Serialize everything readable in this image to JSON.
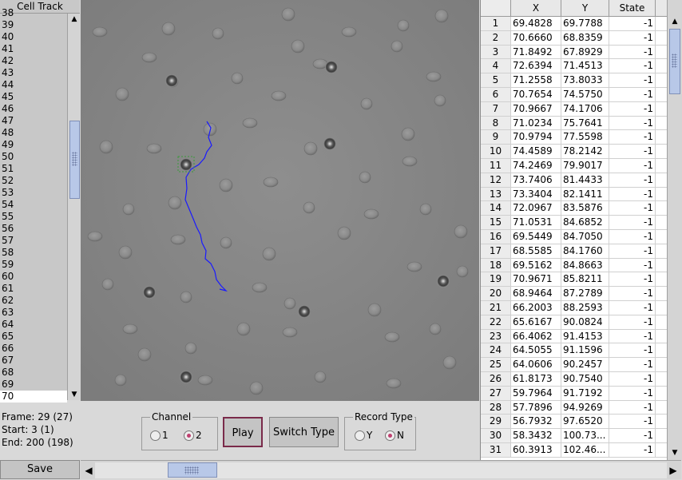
{
  "left_panel": {
    "title": "Cell Track",
    "rows": [
      "38",
      "39",
      "40",
      "41",
      "42",
      "43",
      "44",
      "45",
      "46",
      "47",
      "48",
      "49",
      "50",
      "51",
      "52",
      "53",
      "54",
      "55",
      "56",
      "57",
      "58",
      "59",
      "60",
      "61",
      "62",
      "63",
      "64",
      "65",
      "66",
      "67",
      "68",
      "69",
      "70"
    ],
    "selected": "70"
  },
  "status": {
    "frame": "Frame: 29 (27)",
    "start": "Start: 3 (1)",
    "end": "End: 200 (198)"
  },
  "channel": {
    "title": "Channel",
    "options": [
      "1",
      "2"
    ],
    "selected": "2"
  },
  "buttons": {
    "play": "Play",
    "switch_type": "Switch Type",
    "save": "Save"
  },
  "record_type": {
    "title": "Record Type",
    "options": [
      "Y",
      "N"
    ],
    "selected": "N"
  },
  "table": {
    "columns": [
      "",
      "X",
      "Y",
      "State"
    ],
    "rows": [
      [
        "1",
        "69.4828",
        "69.7788",
        "-1"
      ],
      [
        "2",
        "70.6660",
        "68.8359",
        "-1"
      ],
      [
        "3",
        "71.8492",
        "67.8929",
        "-1"
      ],
      [
        "4",
        "72.6394",
        "71.4513",
        "-1"
      ],
      [
        "5",
        "71.2558",
        "73.8033",
        "-1"
      ],
      [
        "6",
        "70.7654",
        "74.5750",
        "-1"
      ],
      [
        "7",
        "70.9667",
        "74.1706",
        "-1"
      ],
      [
        "8",
        "71.0234",
        "75.7641",
        "-1"
      ],
      [
        "9",
        "70.9794",
        "77.5598",
        "-1"
      ],
      [
        "10",
        "74.4589",
        "78.2142",
        "-1"
      ],
      [
        "11",
        "74.2469",
        "79.9017",
        "-1"
      ],
      [
        "12",
        "73.7406",
        "81.4433",
        "-1"
      ],
      [
        "13",
        "73.3404",
        "82.1411",
        "-1"
      ],
      [
        "14",
        "72.0967",
        "83.5876",
        "-1"
      ],
      [
        "15",
        "71.0531",
        "84.6852",
        "-1"
      ],
      [
        "16",
        "69.5449",
        "84.7050",
        "-1"
      ],
      [
        "17",
        "68.5585",
        "84.1760",
        "-1"
      ],
      [
        "18",
        "69.5162",
        "84.8663",
        "-1"
      ],
      [
        "19",
        "70.9671",
        "85.8211",
        "-1"
      ],
      [
        "20",
        "68.9464",
        "87.2789",
        "-1"
      ],
      [
        "21",
        "66.2003",
        "88.2593",
        "-1"
      ],
      [
        "22",
        "65.6167",
        "90.0824",
        "-1"
      ],
      [
        "23",
        "66.4062",
        "91.4153",
        "-1"
      ],
      [
        "24",
        "64.5055",
        "91.1596",
        "-1"
      ],
      [
        "25",
        "64.0606",
        "90.2457",
        "-1"
      ],
      [
        "26",
        "61.8173",
        "90.7540",
        "-1"
      ],
      [
        "27",
        "59.7964",
        "91.7192",
        "-1"
      ],
      [
        "28",
        "57.7896",
        "94.9269",
        "-1"
      ],
      [
        "29",
        "56.7932",
        "97.6520",
        "-1"
      ],
      [
        "30",
        "58.3432",
        "100.73...",
        "-1"
      ],
      [
        "31",
        "60.3913",
        "102.46...",
        "-1"
      ]
    ]
  },
  "icons": {
    "scroll_up": "arrow-up-icon",
    "scroll_down": "arrow-down-icon",
    "scroll_left": "arrow-left-icon",
    "scroll_right": "arrow-right-icon"
  },
  "colors": {
    "track": "#1a1aff",
    "selection_box": "#3a9a3a",
    "accent": "#c04070"
  }
}
